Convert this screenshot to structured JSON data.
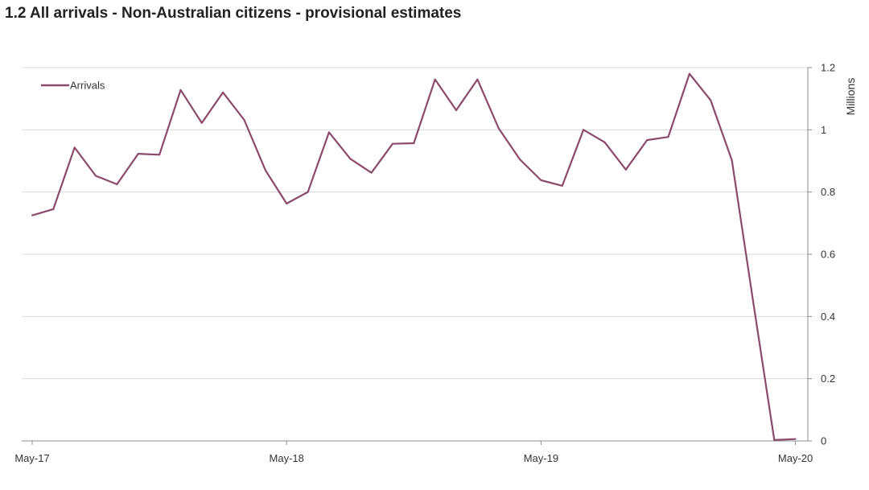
{
  "chart_data": {
    "type": "line",
    "title": "1.2 All arrivals - Non-Australian citizens - provisional estimates",
    "ylabel": "Millions",
    "xlabel": "",
    "ylim": [
      0,
      1.2
    ],
    "y_ticks": [
      "0",
      "0.2",
      "0.4",
      "0.6",
      "0.8",
      "1",
      "1.2"
    ],
    "x_tick_labels": [
      "May-17",
      "May-18",
      "May-19",
      "May-20"
    ],
    "x_tick_indices": [
      0,
      12,
      24,
      36
    ],
    "grid": true,
    "legend_position": "top-left",
    "line_color": "#8B4A6B",
    "series": [
      {
        "name": "Arrivals",
        "x": [
          "May-17",
          "Jun-17",
          "Jul-17",
          "Aug-17",
          "Sep-17",
          "Oct-17",
          "Nov-17",
          "Dec-17",
          "Jan-18",
          "Feb-18",
          "Mar-18",
          "Apr-18",
          "May-18",
          "Jun-18",
          "Jul-18",
          "Aug-18",
          "Sep-18",
          "Oct-18",
          "Nov-18",
          "Dec-18",
          "Jan-19",
          "Feb-19",
          "Mar-19",
          "Apr-19",
          "May-19",
          "Jun-19",
          "Jul-19",
          "Aug-19",
          "Sep-19",
          "Oct-19",
          "Nov-19",
          "Dec-19",
          "Jan-20",
          "Feb-20",
          "Mar-20",
          "Apr-20",
          "May-20"
        ],
        "values": [
          0.725,
          0.745,
          0.943,
          0.852,
          0.825,
          0.923,
          0.92,
          1.128,
          1.022,
          1.12,
          1.032,
          0.87,
          0.763,
          0.8,
          0.992,
          0.907,
          0.862,
          0.955,
          0.957,
          1.162,
          1.063,
          1.162,
          1.005,
          0.905,
          0.838,
          0.82,
          1.0,
          0.96,
          0.872,
          0.967,
          0.977,
          1.18,
          1.095,
          0.902,
          0.45,
          0.003,
          0.006
        ]
      }
    ]
  }
}
